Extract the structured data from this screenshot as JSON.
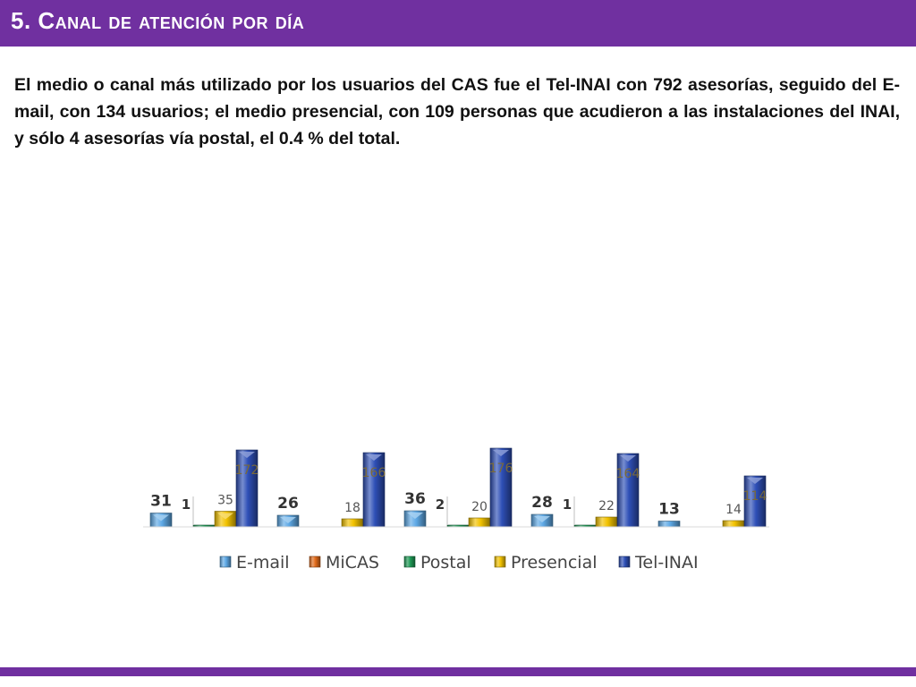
{
  "header": {
    "title": "5. Canal de atención por día"
  },
  "paragraph": "El medio o canal más utilizado por los usuarios del CAS fue el Tel-INAI con 792 asesorías, seguido del E-mail, con 134 usuarios; el medio presencial, con 109 personas que acudieron a las instalaciones del INAI, y sólo 4 asesorías vía postal, el 0.4 % del total.",
  "chart_data": {
    "type": "bar",
    "style": "3d-beveled",
    "categories": [
      "",
      "",
      "",
      "",
      ""
    ],
    "series": [
      {
        "name": "E-mail",
        "color": "#5ea9e6",
        "values": [
          31,
          26,
          36,
          28,
          13
        ]
      },
      {
        "name": "MiCAS",
        "color": "#e26b1b",
        "values": [
          null,
          null,
          null,
          null,
          null
        ]
      },
      {
        "name": "Postal",
        "color": "#1e9a56",
        "values": [
          1,
          null,
          2,
          1,
          null
        ]
      },
      {
        "name": "Presencial",
        "color": "#f2c200",
        "values": [
          35,
          18,
          20,
          22,
          14
        ]
      },
      {
        "name": "Tel-INAI",
        "color": "#2e4fb6",
        "values": [
          172,
          166,
          176,
          164,
          114
        ]
      }
    ],
    "data_labels": {
      "E-mail": [
        "31",
        "26",
        "36",
        "28",
        "13"
      ],
      "Postal": [
        "1",
        "",
        "2",
        "1",
        ""
      ],
      "Presencial": [
        "35",
        "18",
        "20",
        "22",
        "14"
      ],
      "Tel-INAI": [
        "172",
        "166",
        "176",
        "164",
        "114"
      ]
    },
    "legend_position": "bottom",
    "grid": false,
    "ylim": [
      0,
      180
    ]
  }
}
